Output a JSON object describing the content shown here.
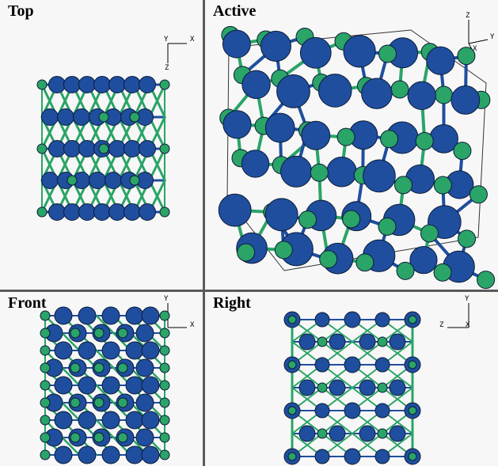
{
  "viewports": [
    {
      "id": "top",
      "title": "Top",
      "axes": {
        "h": "X",
        "v": "Z",
        "origin": "Y"
      }
    },
    {
      "id": "active",
      "title": "Active",
      "axes": {
        "up": "Z",
        "right": "Y",
        "diag": "X"
      }
    },
    {
      "id": "front",
      "title": "Front",
      "axes": {
        "up": "Y",
        "right": "X"
      }
    },
    {
      "id": "right",
      "title": "Right",
      "axes": {
        "up": "Y",
        "left": "Z",
        "right": "X"
      }
    }
  ],
  "colors": {
    "atom_a": "#1f4e9e",
    "atom_b": "#2aa467",
    "bond_a": "#1f4e9e",
    "bond_b": "#2aa467",
    "outline": "#0c1c3a",
    "box": "#333333"
  }
}
